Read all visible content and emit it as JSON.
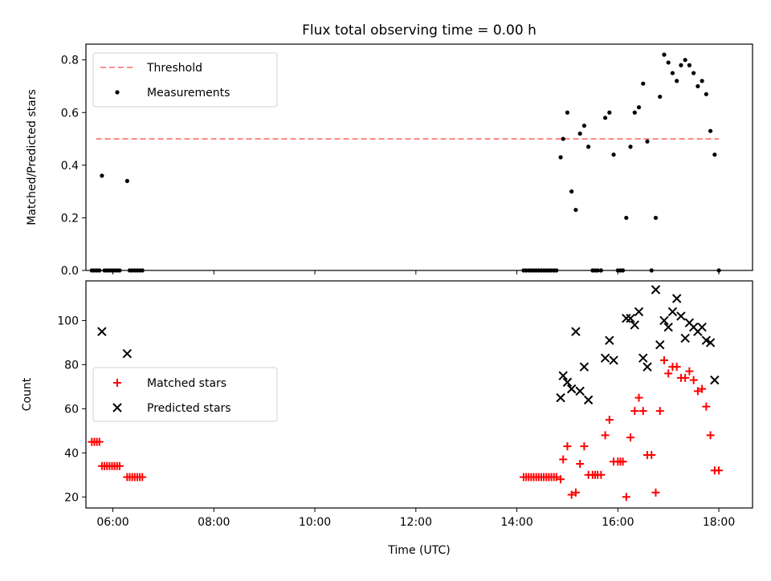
{
  "title": "Flux total observing time = 0.00 h",
  "colors": {
    "threshold": "#ff7f7f",
    "measurement": "#000000",
    "matched": "#ff0000",
    "predicted": "#000000"
  },
  "chart_data": [
    {
      "type": "scatter",
      "title": "Flux total observing time = 0.00 h",
      "xlabel": "",
      "ylabel": "Matched/Predicted stars",
      "xlim": [
        "05:28",
        "18:40"
      ],
      "ylim": [
        0,
        0.86
      ],
      "xticks": [
        "06:00",
        "08:00",
        "10:00",
        "12:00",
        "14:00",
        "16:00",
        "18:00"
      ],
      "yticks": [
        "0.0",
        "0.2",
        "0.4",
        "0.6",
        "0.8"
      ],
      "legend_position": "top-left",
      "threshold": {
        "name": "Threshold",
        "value": 0.5,
        "x_start": "05:40",
        "x_end": "18:00"
      },
      "series": [
        {
          "name": "Measurements",
          "points": [
            [
              "05:35",
              0
            ],
            [
              "05:38",
              0
            ],
            [
              "05:41",
              0
            ],
            [
              "05:44",
              0
            ],
            [
              "05:47",
              0.36
            ],
            [
              "05:50",
              0
            ],
            [
              "05:53",
              0
            ],
            [
              "05:56",
              0
            ],
            [
              "05:59",
              0
            ],
            [
              "06:02",
              0
            ],
            [
              "06:05",
              0
            ],
            [
              "06:08",
              0
            ],
            [
              "06:17",
              0.34
            ],
            [
              "06:20",
              0
            ],
            [
              "06:23",
              0
            ],
            [
              "06:26",
              0
            ],
            [
              "06:29",
              0
            ],
            [
              "06:32",
              0
            ],
            [
              "06:35",
              0
            ],
            [
              "14:08",
              0
            ],
            [
              "14:11",
              0
            ],
            [
              "14:14",
              0
            ],
            [
              "14:17",
              0
            ],
            [
              "14:20",
              0
            ],
            [
              "14:23",
              0
            ],
            [
              "14:26",
              0
            ],
            [
              "14:29",
              0
            ],
            [
              "14:32",
              0
            ],
            [
              "14:35",
              0
            ],
            [
              "14:38",
              0
            ],
            [
              "14:41",
              0
            ],
            [
              "14:44",
              0
            ],
            [
              "14:47",
              0
            ],
            [
              "14:52",
              0.43
            ],
            [
              "14:55",
              0.5
            ],
            [
              "15:00",
              0.6
            ],
            [
              "15:05",
              0.3
            ],
            [
              "15:10",
              0.23
            ],
            [
              "15:15",
              0.52
            ],
            [
              "15:20",
              0.55
            ],
            [
              "15:25",
              0.47
            ],
            [
              "15:30",
              0
            ],
            [
              "15:33",
              0
            ],
            [
              "15:36",
              0
            ],
            [
              "15:40",
              0
            ],
            [
              "15:45",
              0.58
            ],
            [
              "15:50",
              0.6
            ],
            [
              "15:55",
              0.44
            ],
            [
              "16:00",
              0
            ],
            [
              "16:03",
              0
            ],
            [
              "16:06",
              0
            ],
            [
              "16:10",
              0.2
            ],
            [
              "16:15",
              0.47
            ],
            [
              "16:20",
              0.6
            ],
            [
              "16:25",
              0.62
            ],
            [
              "16:30",
              0.71
            ],
            [
              "16:35",
              0.49
            ],
            [
              "16:40",
              0
            ],
            [
              "16:45",
              0.2
            ],
            [
              "16:50",
              0.66
            ],
            [
              "16:55",
              0.82
            ],
            [
              "17:00",
              0.79
            ],
            [
              "17:05",
              0.75
            ],
            [
              "17:10",
              0.72
            ],
            [
              "17:15",
              0.78
            ],
            [
              "17:20",
              0.8
            ],
            [
              "17:25",
              0.78
            ],
            [
              "17:30",
              0.75
            ],
            [
              "17:35",
              0.7
            ],
            [
              "17:40",
              0.72
            ],
            [
              "17:45",
              0.67
            ],
            [
              "17:50",
              0.53
            ],
            [
              "17:55",
              0.44
            ],
            [
              "18:00",
              0
            ]
          ]
        }
      ]
    },
    {
      "type": "scatter",
      "title": "",
      "xlabel": "Time (UTC)",
      "ylabel": "Count",
      "xlim": [
        "05:28",
        "18:40"
      ],
      "ylim": [
        15,
        118
      ],
      "xticks": [
        "06:00",
        "08:00",
        "10:00",
        "12:00",
        "14:00",
        "16:00",
        "18:00"
      ],
      "yticks": [
        "20",
        "40",
        "60",
        "80",
        "100"
      ],
      "legend_position": "center-left",
      "series": [
        {
          "name": "Matched stars",
          "marker": "+",
          "points": [
            [
              "05:35",
              45
            ],
            [
              "05:38",
              45
            ],
            [
              "05:41",
              45
            ],
            [
              "05:44",
              45
            ],
            [
              "05:47",
              34
            ],
            [
              "05:50",
              34
            ],
            [
              "05:53",
              34
            ],
            [
              "05:56",
              34
            ],
            [
              "05:59",
              34
            ],
            [
              "06:02",
              34
            ],
            [
              "06:05",
              34
            ],
            [
              "06:08",
              34
            ],
            [
              "06:17",
              29
            ],
            [
              "06:20",
              29
            ],
            [
              "06:23",
              29
            ],
            [
              "06:26",
              29
            ],
            [
              "06:29",
              29
            ],
            [
              "06:32",
              29
            ],
            [
              "06:35",
              29
            ],
            [
              "14:08",
              29
            ],
            [
              "14:11",
              29
            ],
            [
              "14:14",
              29
            ],
            [
              "14:17",
              29
            ],
            [
              "14:20",
              29
            ],
            [
              "14:23",
              29
            ],
            [
              "14:26",
              29
            ],
            [
              "14:29",
              29
            ],
            [
              "14:32",
              29
            ],
            [
              "14:35",
              29
            ],
            [
              "14:38",
              29
            ],
            [
              "14:41",
              29
            ],
            [
              "14:44",
              29
            ],
            [
              "14:47",
              29
            ],
            [
              "14:52",
              28
            ],
            [
              "14:55",
              37
            ],
            [
              "15:00",
              43
            ],
            [
              "15:05",
              21
            ],
            [
              "15:10",
              22
            ],
            [
              "15:15",
              35
            ],
            [
              "15:20",
              43
            ],
            [
              "15:25",
              30
            ],
            [
              "15:30",
              30
            ],
            [
              "15:33",
              30
            ],
            [
              "15:36",
              30
            ],
            [
              "15:40",
              30
            ],
            [
              "15:45",
              48
            ],
            [
              "15:50",
              55
            ],
            [
              "15:55",
              36
            ],
            [
              "16:00",
              36
            ],
            [
              "16:03",
              36
            ],
            [
              "16:06",
              36
            ],
            [
              "16:10",
              20
            ],
            [
              "16:15",
              47
            ],
            [
              "16:20",
              59
            ],
            [
              "16:25",
              65
            ],
            [
              "16:30",
              59
            ],
            [
              "16:35",
              39
            ],
            [
              "16:40",
              39
            ],
            [
              "16:45",
              22
            ],
            [
              "16:50",
              59
            ],
            [
              "16:55",
              82
            ],
            [
              "17:00",
              76
            ],
            [
              "17:05",
              79
            ],
            [
              "17:10",
              79
            ],
            [
              "17:15",
              74
            ],
            [
              "17:20",
              74
            ],
            [
              "17:25",
              77
            ],
            [
              "17:30",
              73
            ],
            [
              "17:35",
              68
            ],
            [
              "17:40",
              69
            ],
            [
              "17:45",
              61
            ],
            [
              "17:50",
              48
            ],
            [
              "17:55",
              32
            ],
            [
              "18:00",
              32
            ]
          ]
        },
        {
          "name": "Predicted stars",
          "marker": "x",
          "points": [
            [
              "05:47",
              95
            ],
            [
              "06:17",
              85
            ],
            [
              "14:52",
              65
            ],
            [
              "14:55",
              75
            ],
            [
              "15:00",
              72
            ],
            [
              "15:05",
              69
            ],
            [
              "15:10",
              95
            ],
            [
              "15:15",
              68
            ],
            [
              "15:20",
              79
            ],
            [
              "15:25",
              64
            ],
            [
              "15:45",
              83
            ],
            [
              "15:50",
              91
            ],
            [
              "15:55",
              82
            ],
            [
              "16:10",
              101
            ],
            [
              "16:15",
              101
            ],
            [
              "16:20",
              98
            ],
            [
              "16:25",
              104
            ],
            [
              "16:30",
              83
            ],
            [
              "16:35",
              79
            ],
            [
              "16:45",
              114
            ],
            [
              "16:50",
              89
            ],
            [
              "16:55",
              100
            ],
            [
              "17:00",
              97
            ],
            [
              "17:05",
              104
            ],
            [
              "17:10",
              110
            ],
            [
              "17:15",
              102
            ],
            [
              "17:20",
              92
            ],
            [
              "17:25",
              99
            ],
            [
              "17:30",
              97
            ],
            [
              "17:35",
              95
            ],
            [
              "17:40",
              97
            ],
            [
              "17:45",
              91
            ],
            [
              "17:50",
              90
            ],
            [
              "17:55",
              73
            ]
          ]
        }
      ]
    }
  ]
}
